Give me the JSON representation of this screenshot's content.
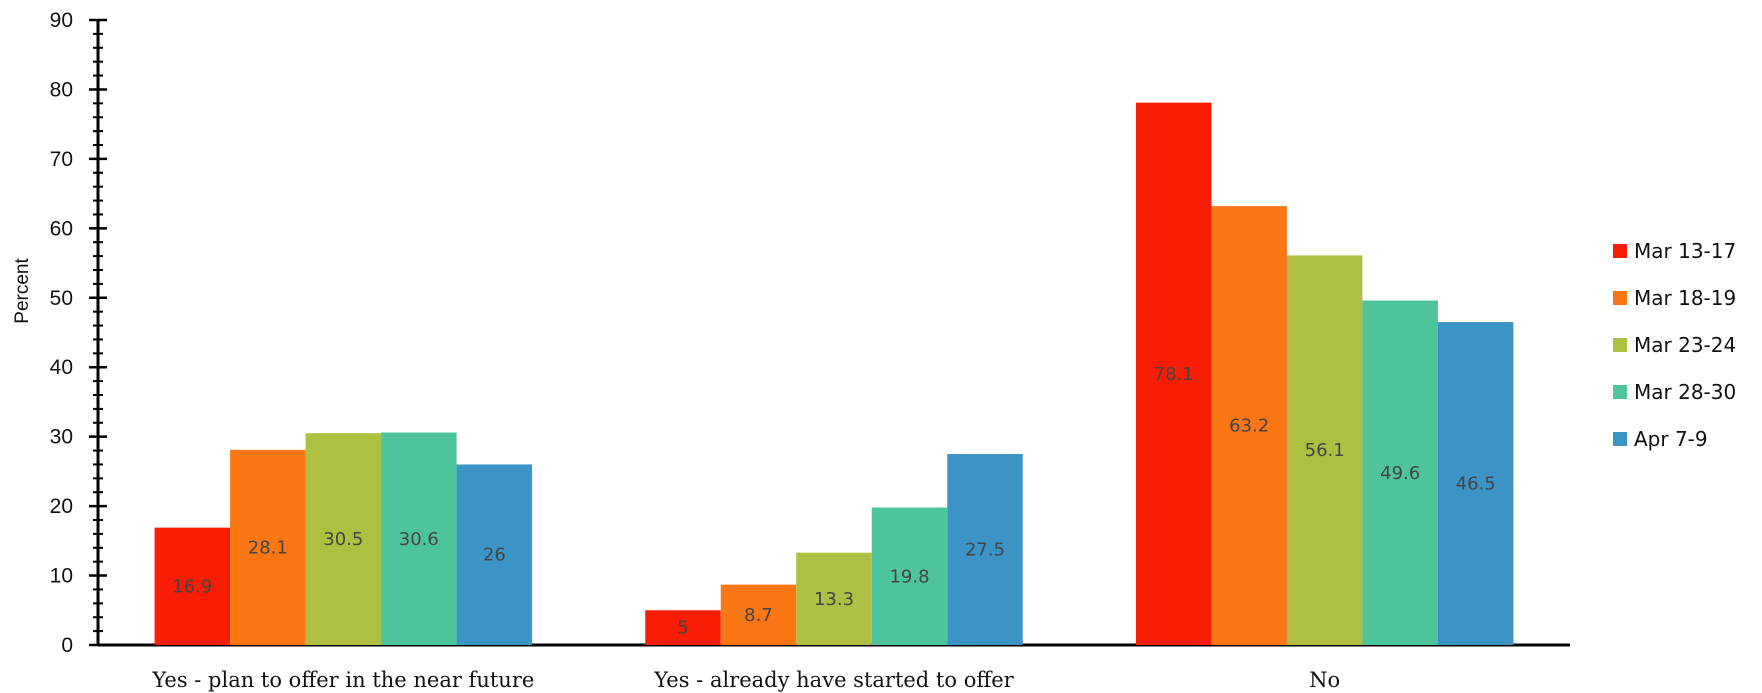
{
  "chart_data": {
    "type": "bar",
    "categories": [
      "Yes - plan to offer in the near future",
      "Yes - already have started to offer",
      "No"
    ],
    "series": [
      {
        "name": "Mar 13-17",
        "color": "#f91d05",
        "values": [
          16.9,
          5,
          78.1
        ]
      },
      {
        "name": "Mar 18-19",
        "color": "#fb7716",
        "values": [
          28.1,
          8.7,
          63.2
        ]
      },
      {
        "name": "Mar 23-24",
        "color": "#afbf42",
        "values": [
          30.5,
          13.3,
          56.1
        ]
      },
      {
        "name": "Mar 28-30",
        "color": "#4ec49b",
        "values": [
          30.6,
          19.8,
          49.6
        ]
      },
      {
        "name": "Apr 7-9",
        "color": "#3b93c6",
        "values": [
          26,
          27.5,
          46.5
        ]
      }
    ],
    "title": "",
    "xlabel": "",
    "ylabel": "Percent",
    "ylim": [
      0,
      90
    ],
    "yticks": [
      0,
      10,
      20,
      30,
      40,
      50,
      60,
      70,
      80,
      90
    ],
    "grid": false,
    "legend": "right"
  }
}
